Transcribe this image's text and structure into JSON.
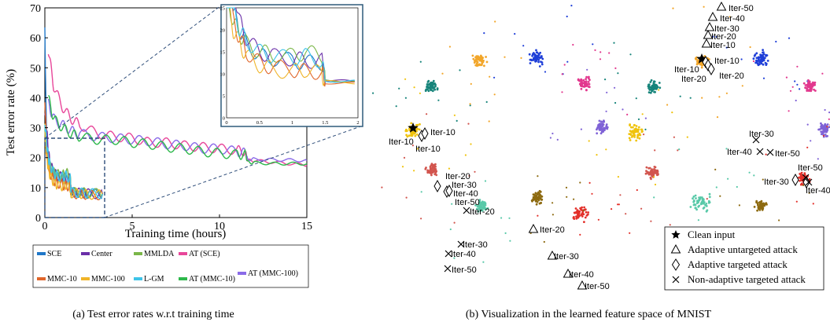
{
  "chart_data": [
    {
      "type": "line",
      "panel": "a",
      "caption": "(a) Test error rates w.r.t training time",
      "xlabel": "Training time (hours)",
      "ylabel": "Test error rate (%)",
      "xlim": [
        0,
        15
      ],
      "ylim": [
        0,
        70
      ],
      "xticks": [
        0,
        5,
        10,
        15
      ],
      "yticks": [
        0,
        10,
        20,
        30,
        40,
        50,
        60,
        70
      ],
      "grid": false,
      "legend": "bottom",
      "series": [
        {
          "name": "SCE",
          "color": "#1f77c8",
          "x": [
            0,
            0.1,
            0.2,
            0.3,
            0.5,
            0.7,
            1.0,
            1.2,
            1.45,
            1.5,
            2.0,
            2.5,
            3.3
          ],
          "y": [
            63,
            24,
            20,
            17,
            14,
            13.5,
            13,
            12.5,
            12.5,
            8.5,
            8.3,
            8,
            8
          ]
        },
        {
          "name": "Center",
          "color": "#6a2fa8",
          "x": [
            0,
            0.1,
            0.2,
            0.3,
            0.5,
            0.7,
            1.0,
            1.2,
            1.45,
            1.5,
            2.0,
            2.5,
            3.3
          ],
          "y": [
            35,
            30,
            22,
            18,
            15,
            14,
            13.5,
            13,
            13,
            8.5,
            8.2,
            8,
            7.8
          ]
        },
        {
          "name": "MMLDA",
          "color": "#7ab648",
          "x": [
            0,
            0.1,
            0.2,
            0.3,
            0.5,
            0.7,
            1.0,
            1.2,
            1.45,
            1.5,
            2.0,
            2.5,
            3.3
          ],
          "y": [
            28,
            22,
            19,
            17,
            15,
            14.5,
            14,
            15,
            14,
            8.3,
            8.5,
            8.2,
            8
          ]
        },
        {
          "name": "AT (SCE)",
          "color": "#e8479a",
          "x": [
            0.2,
            0.5,
            1,
            1.5,
            2,
            3,
            4,
            5,
            6,
            7,
            8,
            9,
            10,
            11,
            11.5,
            11.6,
            12,
            13,
            14,
            15
          ],
          "y": [
            56,
            44,
            37,
            33,
            31,
            28,
            27,
            26.5,
            25,
            25,
            24,
            23.5,
            23,
            22.5,
            22,
            19,
            19,
            18.5,
            18,
            17.5
          ]
        },
        {
          "name": "AT (MMC-100)",
          "color": "#8a6be8",
          "x": [
            0.2,
            0.5,
            1,
            1.5,
            2,
            3,
            4,
            5,
            6,
            7,
            8,
            9,
            10,
            11,
            11.5,
            11.6,
            12,
            13,
            14,
            15
          ],
          "y": [
            38,
            33,
            31,
            29,
            28,
            27,
            26.5,
            26,
            25.5,
            24.5,
            24,
            23,
            23,
            22,
            21.5,
            19.5,
            19.5,
            19.3,
            19.2,
            19
          ]
        },
        {
          "name": "MMC-10",
          "color": "#e0662a",
          "x": [
            0,
            0.1,
            0.2,
            0.3,
            0.5,
            0.7,
            1.0,
            1.2,
            1.45,
            1.5,
            2.0,
            2.5,
            3.3
          ],
          "y": [
            40,
            22,
            18,
            15,
            12.5,
            11.5,
            11,
            10.5,
            10.5,
            8,
            7.8,
            7.6,
            7.5
          ]
        },
        {
          "name": "MMC-100",
          "color": "#f0b428",
          "x": [
            0,
            0.1,
            0.2,
            0.3,
            0.5,
            0.7,
            1.0,
            1.2,
            1.45,
            1.5,
            2.0,
            2.5,
            3.3
          ],
          "y": [
            30,
            20,
            17,
            14,
            12,
            11,
            10.5,
            11,
            10,
            8.2,
            8,
            7.7,
            7.6
          ]
        },
        {
          "name": "L-GM",
          "color": "#3ec4e8",
          "x": [
            0,
            0.1,
            0.2,
            0.3,
            0.5,
            0.7,
            1.0,
            1.2,
            1.45,
            1.5,
            2.0,
            2.5,
            3.3
          ],
          "y": [
            32,
            25,
            20,
            17.5,
            15,
            14,
            13.5,
            14,
            13,
            8.4,
            8.3,
            8.1,
            7.9
          ]
        },
        {
          "name": "AT (MMC-10)",
          "color": "#2db84b",
          "x": [
            0.2,
            0.5,
            1,
            1.5,
            2,
            3,
            4,
            5,
            6,
            7,
            8,
            9,
            10,
            11,
            11.5,
            11.6,
            12,
            13,
            14,
            15
          ],
          "y": [
            40,
            33,
            30,
            28,
            27,
            26,
            26,
            25,
            24.5,
            23.5,
            23,
            22,
            21.5,
            21,
            21,
            18.5,
            18.3,
            18,
            18,
            18
          ]
        }
      ],
      "inset": {
        "xlim": [
          0,
          2
        ],
        "ylim": [
          0,
          25
        ],
        "xticks": [
          "0",
          "0.5",
          "1",
          "1.5",
          "2"
        ],
        "yticks": [
          "0",
          "5",
          "10",
          "15",
          "20",
          "25"
        ]
      }
    },
    {
      "type": "scatter",
      "panel": "b",
      "caption": "(b) Visualization in the learned feature space of MNIST",
      "legend": "bottom-right",
      "legend_entries": [
        {
          "marker": "star",
          "label": "Clean input"
        },
        {
          "marker": "triangle",
          "label": "Adaptive untargeted attack"
        },
        {
          "marker": "diamond",
          "label": "Adaptive targeted attack"
        },
        {
          "marker": "x",
          "label": "Non-adaptive targeted attack"
        }
      ],
      "left_labels": [
        {
          "text": "Iter-10"
        },
        {
          "text": "Iter-10"
        },
        {
          "text": "Iter-10"
        },
        {
          "text": "Iter-20"
        },
        {
          "text": "Iter-30"
        },
        {
          "text": "Iter-40"
        },
        {
          "text": "Iter-50"
        },
        {
          "text": "Iter-20"
        },
        {
          "text": "Iter-20"
        },
        {
          "text": "Iter-30"
        },
        {
          "text": "Iter-40"
        },
        {
          "text": "Iter-50"
        },
        {
          "text": "Iter-30"
        },
        {
          "text": "Iter-40"
        },
        {
          "text": "Iter-50"
        }
      ],
      "right_labels": [
        {
          "text": "Iter-50"
        },
        {
          "text": "Iter-40"
        },
        {
          "text": "Iter-30"
        },
        {
          "text": "Iter-20"
        },
        {
          "text": "Iter-10"
        },
        {
          "text": "Iter-10"
        },
        {
          "text": "Iter-10"
        },
        {
          "text": "Iter-20"
        },
        {
          "text": "Iter-20"
        },
        {
          "text": "Iter-30"
        },
        {
          "text": "Iter-40"
        },
        {
          "text": "Iter-50"
        },
        {
          "text": "Iter-50"
        },
        {
          "text": "Iter-30"
        },
        {
          "text": "Iter-40"
        }
      ]
    }
  ],
  "cluster_colors": [
    "#1f3fd8",
    "#e2388e",
    "#7f62d6",
    "#e3302a",
    "#8d6a10",
    "#58c9a8",
    "#d2554e",
    "#f0c30c",
    "#16847a",
    "#f2a62a"
  ]
}
